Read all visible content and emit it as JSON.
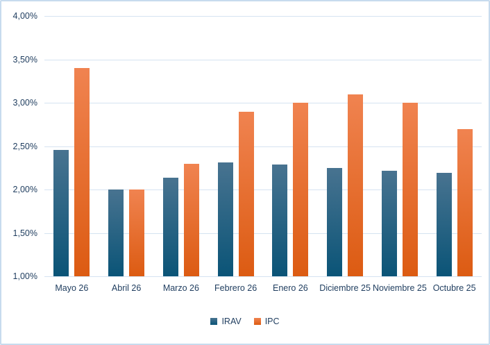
{
  "chart_data": {
    "type": "bar",
    "title": "",
    "xlabel": "",
    "ylabel": "",
    "categories": [
      "Mayo 26",
      "Abril 26",
      "Marzo 26",
      "Febrero 26",
      "Enero 26",
      "Diciembre 25",
      "Noviembre 25",
      "Octubre 25"
    ],
    "series": [
      {
        "name": "IRAV",
        "values": [
          2.46,
          2.0,
          2.14,
          2.31,
          2.29,
          2.25,
          2.22,
          2.19
        ],
        "color_top": "#487390",
        "color_bottom": "#0a5477"
      },
      {
        "name": "IPC",
        "values": [
          3.4,
          2.0,
          2.3,
          2.9,
          3.0,
          3.1,
          3.0,
          2.7
        ],
        "color_top": "#f08350",
        "color_bottom": "#dc5b12"
      }
    ],
    "ylim": [
      1.0,
      4.0
    ],
    "ytick_step": 0.5,
    "ytick_labels": [
      "1,00%",
      "1,50%",
      "2,00%",
      "2,50%",
      "3,00%",
      "3,50%",
      "4,00%"
    ],
    "grid": true,
    "legend_position": "bottom-center"
  },
  "colors": {
    "axis_text": "#1e3c5e",
    "gridline": "#d5e3f1",
    "border": "#c7dbee",
    "background": "#ffffff",
    "irav_top": "#487390",
    "irav_bottom": "#0a5477",
    "ipc_top": "#f08350",
    "ipc_bottom": "#dc5b12"
  }
}
